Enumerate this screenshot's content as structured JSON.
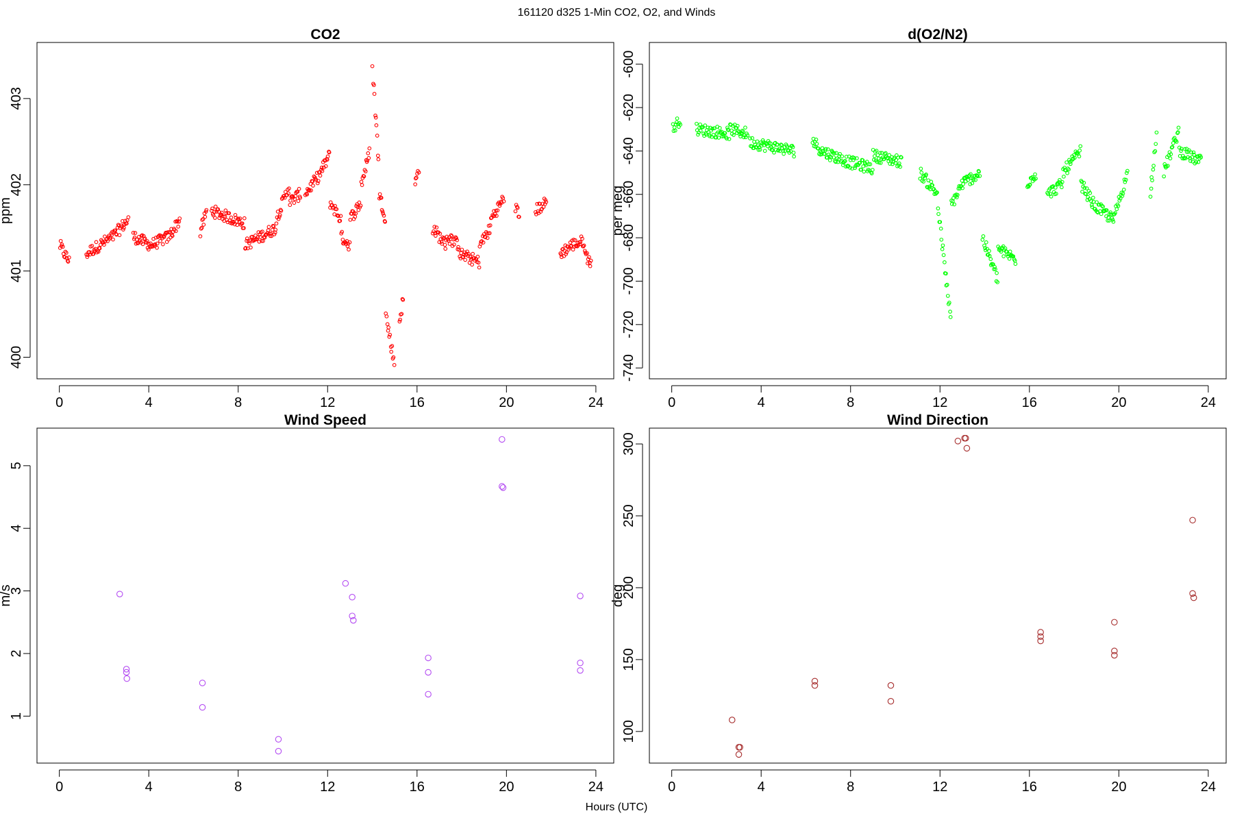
{
  "figure": {
    "suptitle": "161120   d325   1-Min CO2, O2, and Winds",
    "xlabel": "Hours (UTC)"
  },
  "chart_data": [
    {
      "id": "co2",
      "type": "scatter",
      "title": "CO2",
      "xlabel": "",
      "ylabel": "ppm",
      "xlim": [
        -1,
        24.8
      ],
      "ylim": [
        399.75,
        403.65
      ],
      "xticks": [
        0,
        4,
        8,
        12,
        16,
        20,
        24
      ],
      "yticks": [
        400,
        401,
        402,
        403
      ],
      "marker_color": "#ff0000",
      "marker_size": "small",
      "segments": [
        [
          0.02,
          0.45,
          401.3,
          401.1
        ],
        [
          1.2,
          2.4,
          401.2,
          401.4
        ],
        [
          2.4,
          3.1,
          401.4,
          401.6
        ],
        [
          3.3,
          4.1,
          401.4,
          401.3
        ],
        [
          4.1,
          4.9,
          401.3,
          401.4
        ],
        [
          4.9,
          5.4,
          401.4,
          401.6
        ],
        [
          6.3,
          6.6,
          401.45,
          401.7
        ],
        [
          6.8,
          8.3,
          401.7,
          401.55
        ],
        [
          8.3,
          9.7,
          401.3,
          401.5
        ],
        [
          9.7,
          10.3,
          401.6,
          402.0
        ],
        [
          10.3,
          10.8,
          401.8,
          401.9
        ],
        [
          11.0,
          11.6,
          401.9,
          402.1
        ],
        [
          11.6,
          12.1,
          402.1,
          402.35
        ],
        [
          12.1,
          12.6,
          401.8,
          401.6
        ],
        [
          12.6,
          13.0,
          401.4,
          401.3
        ],
        [
          13.0,
          13.5,
          401.6,
          401.8
        ],
        [
          13.5,
          13.9,
          402.0,
          402.4
        ],
        [
          14.0,
          14.3,
          403.4,
          402.2
        ],
        [
          14.3,
          14.6,
          401.9,
          401.6
        ],
        [
          14.6,
          15.0,
          400.5,
          399.9
        ],
        [
          15.2,
          15.4,
          400.4,
          400.7
        ],
        [
          15.9,
          16.1,
          402.0,
          402.2
        ],
        [
          16.7,
          17.3,
          401.5,
          401.3
        ],
        [
          17.3,
          17.9,
          401.4,
          401.3
        ],
        [
          17.9,
          18.8,
          401.2,
          401.1
        ],
        [
          18.8,
          19.3,
          401.3,
          401.5
        ],
        [
          19.3,
          19.9,
          401.6,
          401.85
        ],
        [
          20.4,
          20.6,
          401.75,
          401.6
        ],
        [
          21.3,
          21.8,
          401.7,
          401.8
        ],
        [
          22.4,
          22.9,
          401.2,
          401.3
        ],
        [
          22.9,
          23.5,
          401.3,
          401.35
        ],
        [
          23.5,
          23.8,
          401.2,
          401.1
        ]
      ]
    },
    {
      "id": "o2",
      "type": "scatter",
      "title": "d(O2/N2)",
      "xlabel": "",
      "ylabel": "per meg",
      "xlim": [
        -1,
        24.8
      ],
      "ylim": [
        -745,
        -590
      ],
      "xticks": [
        0,
        4,
        8,
        12,
        16,
        20,
        24
      ],
      "yticks": [
        -600,
        -620,
        -640,
        -660,
        -680,
        -700,
        -720,
        -740
      ],
      "marker_color": "#00ff00",
      "marker_size": "small",
      "segments": [
        [
          0.05,
          0.4,
          -630,
          -625
        ],
        [
          1.1,
          2.6,
          -630,
          -632
        ],
        [
          2.6,
          3.4,
          -630,
          -632
        ],
        [
          3.5,
          5.5,
          -636,
          -640
        ],
        [
          6.3,
          6.7,
          -635,
          -640
        ],
        [
          6.7,
          7.9,
          -640,
          -645
        ],
        [
          7.9,
          9.0,
          -645,
          -648
        ],
        [
          9.0,
          10.3,
          -642,
          -645
        ],
        [
          11.1,
          11.9,
          -650,
          -660
        ],
        [
          11.9,
          12.5,
          -665,
          -720
        ],
        [
          12.5,
          13.0,
          -665,
          -655
        ],
        [
          13.0,
          13.8,
          -655,
          -650
        ],
        [
          13.9,
          14.6,
          -680,
          -700
        ],
        [
          14.6,
          15.4,
          -685,
          -690
        ],
        [
          15.9,
          16.3,
          -655,
          -650
        ],
        [
          16.8,
          17.5,
          -660,
          -655
        ],
        [
          17.5,
          18.3,
          -650,
          -640
        ],
        [
          18.3,
          18.9,
          -655,
          -665
        ],
        [
          18.9,
          19.8,
          -665,
          -672
        ],
        [
          19.8,
          20.4,
          -670,
          -650
        ],
        [
          21.4,
          21.7,
          -660,
          -630
        ],
        [
          22.0,
          22.7,
          -650,
          -630
        ],
        [
          22.7,
          23.7,
          -640,
          -645
        ]
      ]
    },
    {
      "id": "wind_speed",
      "type": "scatter",
      "title": "Wind Speed",
      "xlabel": "",
      "ylabel": "m/s",
      "xlim": [
        -1,
        24.8
      ],
      "ylim": [
        0.25,
        5.6
      ],
      "xticks": [
        0,
        4,
        8,
        12,
        16,
        20,
        24
      ],
      "yticks": [
        1,
        2,
        3,
        4,
        5
      ],
      "marker_color": "#b44cf2",
      "marker_size": "large",
      "points": [
        [
          2.7,
          2.95
        ],
        [
          3.0,
          1.75
        ],
        [
          3.0,
          1.7
        ],
        [
          3.02,
          1.6
        ],
        [
          6.4,
          1.53
        ],
        [
          6.4,
          1.14
        ],
        [
          9.8,
          0.63
        ],
        [
          9.8,
          0.44
        ],
        [
          12.8,
          3.12
        ],
        [
          13.1,
          2.9
        ],
        [
          13.1,
          2.6
        ],
        [
          13.15,
          2.53
        ],
        [
          16.5,
          1.93
        ],
        [
          16.5,
          1.7
        ],
        [
          16.5,
          1.35
        ],
        [
          19.8,
          5.42
        ],
        [
          19.8,
          4.67
        ],
        [
          19.85,
          4.65
        ],
        [
          23.3,
          2.92
        ],
        [
          23.3,
          1.85
        ],
        [
          23.3,
          1.73
        ]
      ]
    },
    {
      "id": "wind_dir",
      "type": "scatter",
      "title": "Wind Direction",
      "xlabel": "",
      "ylabel": "deg",
      "xlim": [
        -1,
        24.8
      ],
      "ylim": [
        78,
        311
      ],
      "xticks": [
        0,
        4,
        8,
        12,
        16,
        20,
        24
      ],
      "yticks": [
        100,
        150,
        200,
        250,
        300
      ],
      "marker_color": "#a52a2a",
      "marker_size": "large",
      "points": [
        [
          2.7,
          108
        ],
        [
          3.0,
          89
        ],
        [
          3.05,
          89
        ],
        [
          3.0,
          84
        ],
        [
          6.4,
          135
        ],
        [
          6.4,
          132
        ],
        [
          9.8,
          132
        ],
        [
          9.8,
          121
        ],
        [
          12.8,
          302
        ],
        [
          13.1,
          304
        ],
        [
          13.15,
          304
        ],
        [
          13.2,
          297
        ],
        [
          16.5,
          169
        ],
        [
          16.5,
          166
        ],
        [
          16.5,
          163
        ],
        [
          19.8,
          176
        ],
        [
          19.8,
          156
        ],
        [
          19.8,
          153
        ],
        [
          23.3,
          247
        ],
        [
          23.3,
          196
        ],
        [
          23.35,
          193
        ]
      ]
    }
  ]
}
